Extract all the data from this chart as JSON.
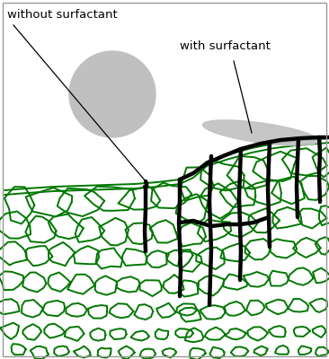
{
  "label_without": "without surfactant",
  "label_with": "with surfactant",
  "green": "#007700",
  "black": "#000000",
  "gray": "#c0c0c0",
  "white": "#ffffff",
  "bg": "#ffffff",
  "fig_w": 3.66,
  "fig_h": 4.0,
  "dpi": 100
}
